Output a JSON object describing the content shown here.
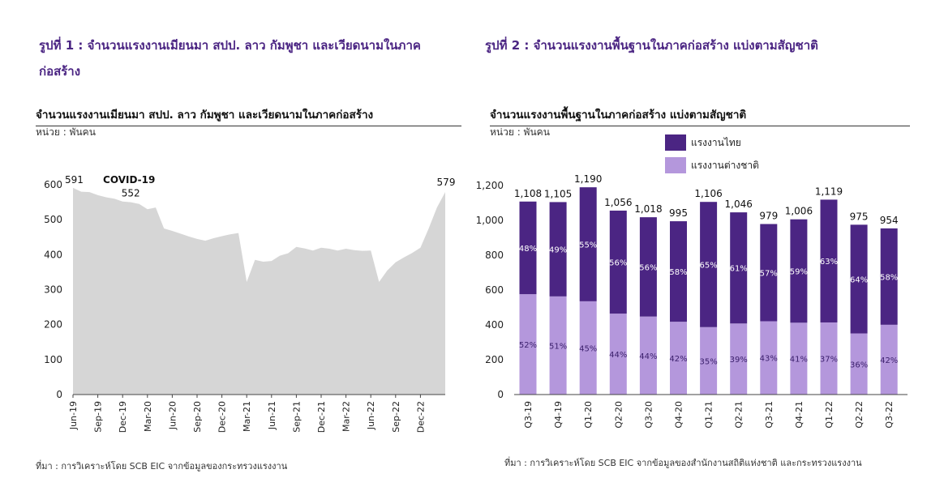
{
  "figure1": {
    "title": "รูปที่ 1 : จำนวนแรงงานเมียนมา สปป. ลาว กัมพูชา และเวียดนามในภาคก่อสร้าง",
    "source": "ที่มา : การวิเคราะห์โดย SCB EIC จากข้อมูลของกระทรวงแรงงาน"
  },
  "figure2": {
    "title": "รูปที่ 2 : จำนวนแรงงานพื้นฐานในภาคก่อสร้าง แบ่งตามสัญชาติ",
    "source": "ที่มา : การวิเคราะห์โดย SCB EIC จากข้อมูลของสำนักงานสถิติแห่งชาติ และกระทรวงแรงงาน"
  },
  "chart_data": [
    {
      "type": "area",
      "title": "จำนวนแรงงานเมียนมา สปป. ลาว กัมพูชา และเวียดนามในภาคก่อสร้าง",
      "unit": "หน่วย : พันคน",
      "xlabel": "",
      "ylabel": "",
      "ylim": [
        0,
        600
      ],
      "yticks": [
        0,
        100,
        200,
        300,
        400,
        500,
        600
      ],
      "xticks": [
        "Jun-19",
        "Sep-19",
        "Dec-19",
        "Mar-20",
        "Jun-20",
        "Sep-20",
        "Dec-20",
        "Mar-21",
        "Jun-21",
        "Sep-21",
        "Dec-21",
        "Mar-22",
        "Jun-22",
        "Sep-22",
        "Dec-22"
      ],
      "start_month": "Jun-19",
      "values": [
        591,
        580,
        579,
        570,
        564,
        560,
        552,
        550,
        545,
        530,
        535,
        475,
        468,
        460,
        452,
        445,
        440,
        447,
        453,
        458,
        462,
        322,
        385,
        380,
        382,
        397,
        404,
        422,
        418,
        412,
        420,
        417,
        412,
        417,
        413,
        411,
        412,
        322,
        355,
        378,
        392,
        405,
        420,
        475,
        535,
        579
      ],
      "annotations": [
        {
          "text": "591",
          "month_index": 0
        },
        {
          "text": "552",
          "month_index": 6
        },
        {
          "text": "579",
          "month_index": 45
        },
        {
          "text": "COVID-19",
          "month_index": 6
        }
      ],
      "color": "#d6d6d6",
      "annotation_color": "#b4202a"
    },
    {
      "type": "bar",
      "stacked": true,
      "title": "จำนวนแรงงานพื้นฐานในภาคก่อสร้าง แบ่งตามสัญชาติ",
      "unit": "หน่วย : พันคน",
      "xlabel": "",
      "ylabel": "",
      "ylim": [
        0,
        1200
      ],
      "yticks": [
        "0",
        "200",
        "400",
        "600",
        "800",
        "1,000",
        "1,200"
      ],
      "categories": [
        "Q3-19",
        "Q4-19",
        "Q1-20",
        "Q2-20",
        "Q3-20",
        "Q4-20",
        "Q1-21",
        "Q2-21",
        "Q3-21",
        "Q4-21",
        "Q1-22",
        "Q2-22",
        "Q3-22"
      ],
      "totals": [
        1108,
        1105,
        1190,
        1056,
        1018,
        995,
        1106,
        1046,
        979,
        1006,
        1119,
        975,
        954
      ],
      "total_labels": [
        "1,108",
        "1,105",
        "1,190",
        "1,056",
        "1,018",
        "995",
        "1,106",
        "1,046",
        "979",
        "1,006",
        "1,119",
        "975",
        "954"
      ],
      "series": [
        {
          "name": "แรงงานต่างชาติ",
          "color": "#b497dc",
          "percent": [
            52,
            51,
            45,
            44,
            44,
            42,
            35,
            39,
            43,
            41,
            37,
            36,
            42
          ],
          "percent_labels": [
            "52%",
            "51%",
            "45%",
            "44%",
            "44%",
            "42%",
            "35%",
            "39%",
            "43%",
            "41%",
            "37%",
            "36%",
            "42%"
          ]
        },
        {
          "name": "แรงงานไทย",
          "color": "#4b2583",
          "percent": [
            48,
            49,
            55,
            56,
            56,
            58,
            65,
            61,
            57,
            59,
            63,
            64,
            58
          ],
          "percent_labels": [
            "48%",
            "49%",
            "55%",
            "56%",
            "56%",
            "58%",
            "65%",
            "61%",
            "57%",
            "59%",
            "63%",
            "64%",
            "58%"
          ]
        }
      ],
      "legend": "top"
    }
  ]
}
